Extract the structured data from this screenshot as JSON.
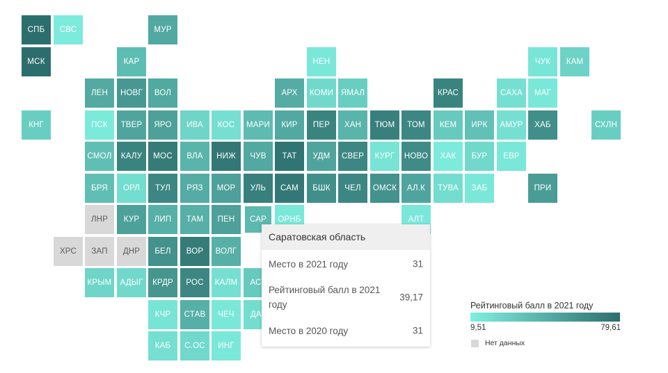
{
  "legend": {
    "title": "Рейтинговый балл в 2021 году",
    "min_label": "9,51",
    "max_label": "79,61",
    "min": 9.51,
    "max": 79.61,
    "no_data_label": "Нет данных",
    "color_low": "#7ff0e0",
    "color_high": "#2c6e6d",
    "no_data_color": "#d8d8d8"
  },
  "tooltip": {
    "region": "Саратовская область",
    "rows": [
      {
        "label": "Место в 2021 году",
        "value": "31"
      },
      {
        "label": "Рейтинговый балл в 2021 году",
        "value": "39,17"
      },
      {
        "label": "Место в 2020 году",
        "value": "31"
      }
    ]
  },
  "highlighted_region": "САР",
  "regions": [
    {
      "abbr": "СПБ",
      "row": 0,
      "col": 0,
      "score": 79.6
    },
    {
      "abbr": "СВС",
      "row": 0,
      "col": 1,
      "score": 12
    },
    {
      "abbr": "МУР",
      "row": 0,
      "col": 4,
      "score": 48
    },
    {
      "abbr": "МСК",
      "row": 1,
      "col": 0,
      "score": 79.6
    },
    {
      "abbr": "КАР",
      "row": 1,
      "col": 3,
      "score": 37
    },
    {
      "abbr": "НЕН",
      "row": 1,
      "col": 9,
      "score": 14
    },
    {
      "abbr": "ЧУК",
      "row": 1,
      "col": 16,
      "score": 15
    },
    {
      "abbr": "КАМ",
      "row": 1,
      "col": 17,
      "score": 25
    },
    {
      "abbr": "ЛЕН",
      "row": 2,
      "col": 2,
      "score": 47
    },
    {
      "abbr": "НОВГ",
      "row": 2,
      "col": 3,
      "score": 57
    },
    {
      "abbr": "ВОЛ",
      "row": 2,
      "col": 4,
      "score": 48
    },
    {
      "abbr": "АРХ",
      "row": 2,
      "col": 8,
      "score": 46
    },
    {
      "abbr": "КОМИ",
      "row": 2,
      "col": 9,
      "score": 22
    },
    {
      "abbr": "ЯМАЛ",
      "row": 2,
      "col": 10,
      "score": 28
    },
    {
      "abbr": "КРАС",
      "row": 2,
      "col": 13,
      "score": 68
    },
    {
      "abbr": "САХА",
      "row": 2,
      "col": 15,
      "score": 18
    },
    {
      "abbr": "МАГ",
      "row": 2,
      "col": 16,
      "score": 14
    },
    {
      "abbr": "КНГ",
      "row": 3,
      "col": 0,
      "score": 28
    },
    {
      "abbr": "ПСК",
      "row": 3,
      "col": 2,
      "score": 13
    },
    {
      "abbr": "ТВЕР",
      "row": 3,
      "col": 3,
      "score": 50
    },
    {
      "abbr": "ЯРО",
      "row": 3,
      "col": 4,
      "score": 52
    },
    {
      "abbr": "ИВА",
      "row": 3,
      "col": 5,
      "score": 24
    },
    {
      "abbr": "КОС",
      "row": 3,
      "col": 6,
      "score": 18
    },
    {
      "abbr": "МАРИ",
      "row": 3,
      "col": 7,
      "score": 38
    },
    {
      "abbr": "КИР",
      "row": 3,
      "col": 8,
      "score": 48
    },
    {
      "abbr": "ПЕР",
      "row": 3,
      "col": 9,
      "score": 68
    },
    {
      "abbr": "ХАН",
      "row": 3,
      "col": 10,
      "score": 42
    },
    {
      "abbr": "ТЮМ",
      "row": 3,
      "col": 11,
      "score": 70
    },
    {
      "abbr": "ТОМ",
      "row": 3,
      "col": 12,
      "score": 66
    },
    {
      "abbr": "КЕМ",
      "row": 3,
      "col": 13,
      "score": 30
    },
    {
      "abbr": "ИРК",
      "row": 3,
      "col": 14,
      "score": 35
    },
    {
      "abbr": "АМУР",
      "row": 3,
      "col": 15,
      "score": 18
    },
    {
      "abbr": "ХАБ",
      "row": 3,
      "col": 16,
      "score": 62
    },
    {
      "abbr": "СХЛН",
      "row": 3,
      "col": 18,
      "score": 28
    },
    {
      "abbr": "СМОЛ",
      "row": 4,
      "col": 2,
      "score": 36
    },
    {
      "abbr": "КАЛУ",
      "row": 4,
      "col": 3,
      "score": 68
    },
    {
      "abbr": "МОС",
      "row": 4,
      "col": 4,
      "score": 72
    },
    {
      "abbr": "ВЛА",
      "row": 4,
      "col": 5,
      "score": 42
    },
    {
      "abbr": "НИЖ",
      "row": 4,
      "col": 6,
      "score": 74
    },
    {
      "abbr": "ЧУВ",
      "row": 4,
      "col": 7,
      "score": 48
    },
    {
      "abbr": "ТАТ",
      "row": 4,
      "col": 8,
      "score": 76
    },
    {
      "abbr": "УДМ",
      "row": 4,
      "col": 9,
      "score": 50
    },
    {
      "abbr": "СВЕР",
      "row": 4,
      "col": 10,
      "score": 66
    },
    {
      "abbr": "КУРГ",
      "row": 4,
      "col": 11,
      "score": 16
    },
    {
      "abbr": "НОВО",
      "row": 4,
      "col": 12,
      "score": 64
    },
    {
      "abbr": "ХАК",
      "row": 4,
      "col": 13,
      "score": 12
    },
    {
      "abbr": "БУР",
      "row": 4,
      "col": 14,
      "score": 22
    },
    {
      "abbr": "ЕВР",
      "row": 4,
      "col": 15,
      "score": 14
    },
    {
      "abbr": "БРЯ",
      "row": 5,
      "col": 2,
      "score": 36
    },
    {
      "abbr": "ОРЛ",
      "row": 5,
      "col": 3,
      "score": 20
    },
    {
      "abbr": "ТУЛ",
      "row": 5,
      "col": 4,
      "score": 66
    },
    {
      "abbr": "РЯЗ",
      "row": 5,
      "col": 5,
      "score": 46
    },
    {
      "abbr": "МОР",
      "row": 5,
      "col": 6,
      "score": 52
    },
    {
      "abbr": "УЛЬ",
      "row": 5,
      "col": 7,
      "score": 70
    },
    {
      "abbr": "САМ",
      "row": 5,
      "col": 8,
      "score": 74
    },
    {
      "abbr": "БШК",
      "row": 5,
      "col": 9,
      "score": 62
    },
    {
      "abbr": "ЧЕЛ",
      "row": 5,
      "col": 10,
      "score": 66
    },
    {
      "abbr": "ОМСК",
      "row": 5,
      "col": 11,
      "score": 60
    },
    {
      "abbr": "АЛ.К",
      "row": 5,
      "col": 12,
      "score": 50
    },
    {
      "abbr": "ТУВА",
      "row": 5,
      "col": 13,
      "score": 20
    },
    {
      "abbr": "ЗАБ",
      "row": 5,
      "col": 14,
      "score": 14
    },
    {
      "abbr": "ПРИ",
      "row": 5,
      "col": 16,
      "score": 54
    },
    {
      "abbr": "ЛНР",
      "row": 6,
      "col": 2,
      "score": null
    },
    {
      "abbr": "КУР",
      "row": 6,
      "col": 3,
      "score": 52
    },
    {
      "abbr": "ЛИП",
      "row": 6,
      "col": 4,
      "score": 44
    },
    {
      "abbr": "ТАМ",
      "row": 6,
      "col": 5,
      "score": 44
    },
    {
      "abbr": "ПЕН",
      "row": 6,
      "col": 6,
      "score": 52
    },
    {
      "abbr": "САР",
      "row": 6,
      "col": 7,
      "score": 39.17
    },
    {
      "abbr": "ОРНБ",
      "row": 6,
      "col": 8,
      "score": 14
    },
    {
      "abbr": "АЛТ",
      "row": 6,
      "col": 12,
      "score": 14
    },
    {
      "abbr": "ХРС",
      "row": 7,
      "col": 1,
      "score": null
    },
    {
      "abbr": "ЗАП",
      "row": 7,
      "col": 2,
      "score": null
    },
    {
      "abbr": "ДНР",
      "row": 7,
      "col": 3,
      "score": null
    },
    {
      "abbr": "БЕЛ",
      "row": 7,
      "col": 4,
      "score": 60
    },
    {
      "abbr": "ВОР",
      "row": 7,
      "col": 5,
      "score": 72
    },
    {
      "abbr": "ВОЛГ",
      "row": 7,
      "col": 6,
      "score": 44
    },
    {
      "abbr": "КРЫМ",
      "row": 8,
      "col": 2,
      "score": 24
    },
    {
      "abbr": "АДЫГ",
      "row": 8,
      "col": 3,
      "score": 22
    },
    {
      "abbr": "КРДР",
      "row": 8,
      "col": 4,
      "score": 58
    },
    {
      "abbr": "РОС",
      "row": 8,
      "col": 5,
      "score": 66
    },
    {
      "abbr": "КАЛМ",
      "row": 8,
      "col": 6,
      "score": 18
    },
    {
      "abbr": "АСТ",
      "row": 8,
      "col": 7,
      "score": 30
    },
    {
      "abbr": "КЧР",
      "row": 9,
      "col": 4,
      "score": 16
    },
    {
      "abbr": "СТАВ",
      "row": 9,
      "col": 5,
      "score": 44
    },
    {
      "abbr": "ЧЕЧ",
      "row": 9,
      "col": 6,
      "score": 14
    },
    {
      "abbr": "ДАГ",
      "row": 9,
      "col": 7,
      "score": 20
    },
    {
      "abbr": "КАБ",
      "row": 10,
      "col": 4,
      "score": 18
    },
    {
      "abbr": "С.ОС",
      "row": 10,
      "col": 5,
      "score": 22
    },
    {
      "abbr": "ИНГ",
      "row": 10,
      "col": 6,
      "score": 14
    }
  ]
}
